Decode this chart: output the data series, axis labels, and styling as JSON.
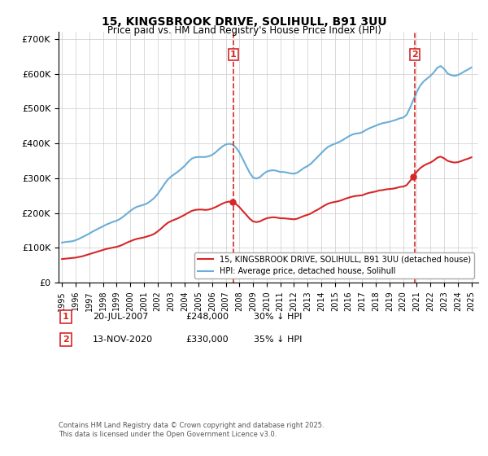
{
  "title": "15, KINGSBROOK DRIVE, SOLIHULL, B91 3UU",
  "subtitle": "Price paid vs. HM Land Registry's House Price Index (HPI)",
  "ylabel": "",
  "ylim": [
    0,
    720000
  ],
  "yticks": [
    0,
    100000,
    200000,
    300000,
    400000,
    500000,
    600000,
    700000
  ],
  "ytick_labels": [
    "£0",
    "£100K",
    "£200K",
    "£300K",
    "£400K",
    "£500K",
    "£600K",
    "£700K"
  ],
  "background_color": "#ffffff",
  "grid_color": "#cccccc",
  "hpi_color": "#6baed6",
  "price_color": "#d62728",
  "vline_color": "#d62728",
  "annotation_box_color": "#d62728",
  "transaction1_year": 2007.55,
  "transaction2_year": 2020.87,
  "transaction1_price": 248000,
  "transaction2_price": 330000,
  "legend_line1": "15, KINGSBROOK DRIVE, SOLIHULL, B91 3UU (detached house)",
  "legend_line2": "HPI: Average price, detached house, Solihull",
  "footnote": "Contains HM Land Registry data © Crown copyright and database right 2025.\nThis data is licensed under the Open Government Licence v3.0.",
  "table_row1": [
    "1",
    "20-JUL-2007",
    "£248,000",
    "30% ↓ HPI"
  ],
  "table_row2": [
    "2",
    "13-NOV-2020",
    "£330,000",
    "35% ↓ HPI"
  ],
  "hpi_x": [
    1995.0,
    1995.25,
    1995.5,
    1995.75,
    1996.0,
    1996.25,
    1996.5,
    1996.75,
    1997.0,
    1997.25,
    1997.5,
    1997.75,
    1998.0,
    1998.25,
    1998.5,
    1998.75,
    1999.0,
    1999.25,
    1999.5,
    1999.75,
    2000.0,
    2000.25,
    2000.5,
    2000.75,
    2001.0,
    2001.25,
    2001.5,
    2001.75,
    2002.0,
    2002.25,
    2002.5,
    2002.75,
    2003.0,
    2003.25,
    2003.5,
    2003.75,
    2004.0,
    2004.25,
    2004.5,
    2004.75,
    2005.0,
    2005.25,
    2005.5,
    2005.75,
    2006.0,
    2006.25,
    2006.5,
    2006.75,
    2007.0,
    2007.25,
    2007.5,
    2007.75,
    2008.0,
    2008.25,
    2008.5,
    2008.75,
    2009.0,
    2009.25,
    2009.5,
    2009.75,
    2010.0,
    2010.25,
    2010.5,
    2010.75,
    2011.0,
    2011.25,
    2011.5,
    2011.75,
    2012.0,
    2012.25,
    2012.5,
    2012.75,
    2013.0,
    2013.25,
    2013.5,
    2013.75,
    2014.0,
    2014.25,
    2014.5,
    2014.75,
    2015.0,
    2015.25,
    2015.5,
    2015.75,
    2016.0,
    2016.25,
    2016.5,
    2016.75,
    2017.0,
    2017.25,
    2017.5,
    2017.75,
    2018.0,
    2018.25,
    2018.5,
    2018.75,
    2019.0,
    2019.25,
    2019.5,
    2019.75,
    2020.0,
    2020.25,
    2020.5,
    2020.75,
    2021.0,
    2021.25,
    2021.5,
    2021.75,
    2022.0,
    2022.25,
    2022.5,
    2022.75,
    2023.0,
    2023.25,
    2023.5,
    2023.75,
    2024.0,
    2024.25,
    2024.5,
    2024.75,
    2025.0
  ],
  "hpi_y": [
    115000,
    117000,
    118000,
    119000,
    122000,
    126000,
    131000,
    136000,
    141000,
    147000,
    152000,
    157000,
    162000,
    167000,
    171000,
    175000,
    178000,
    183000,
    190000,
    198000,
    206000,
    213000,
    218000,
    221000,
    224000,
    228000,
    235000,
    243000,
    254000,
    268000,
    283000,
    296000,
    305000,
    312000,
    319000,
    327000,
    336000,
    347000,
    356000,
    360000,
    361000,
    361000,
    361000,
    363000,
    367000,
    374000,
    383000,
    391000,
    397000,
    399000,
    397000,
    388000,
    374000,
    355000,
    335000,
    316000,
    302000,
    299000,
    303000,
    312000,
    319000,
    322000,
    323000,
    321000,
    318000,
    318000,
    316000,
    314000,
    313000,
    316000,
    323000,
    330000,
    335000,
    342000,
    352000,
    362000,
    372000,
    382000,
    390000,
    395000,
    399000,
    403000,
    408000,
    414000,
    420000,
    425000,
    428000,
    429000,
    432000,
    438000,
    443000,
    447000,
    451000,
    455000,
    458000,
    460000,
    462000,
    465000,
    468000,
    472000,
    474000,
    482000,
    502000,
    525000,
    548000,
    566000,
    578000,
    586000,
    594000,
    604000,
    617000,
    622000,
    614000,
    601000,
    596000,
    594000,
    596000,
    601000,
    607000,
    612000,
    618000
  ],
  "price_x": [
    1995.0,
    1995.25,
    1995.5,
    1995.75,
    1996.0,
    1996.25,
    1996.5,
    1996.75,
    1997.0,
    1997.25,
    1997.5,
    1997.75,
    1998.0,
    1998.25,
    1998.5,
    1998.75,
    1999.0,
    1999.25,
    1999.5,
    1999.75,
    2000.0,
    2000.25,
    2000.5,
    2000.75,
    2001.0,
    2001.25,
    2001.5,
    2001.75,
    2002.0,
    2002.25,
    2002.5,
    2002.75,
    2003.0,
    2003.25,
    2003.5,
    2003.75,
    2004.0,
    2004.25,
    2004.5,
    2004.75,
    2005.0,
    2005.25,
    2005.5,
    2005.75,
    2006.0,
    2006.25,
    2006.5,
    2006.75,
    2007.0,
    2007.25,
    2007.5,
    2007.75,
    2008.0,
    2008.25,
    2008.5,
    2008.75,
    2009.0,
    2009.25,
    2009.5,
    2009.75,
    2010.0,
    2010.25,
    2010.5,
    2010.75,
    2011.0,
    2011.25,
    2011.5,
    2011.75,
    2012.0,
    2012.25,
    2012.5,
    2012.75,
    2013.0,
    2013.25,
    2013.5,
    2013.75,
    2014.0,
    2014.25,
    2014.5,
    2014.75,
    2015.0,
    2015.25,
    2015.5,
    2015.75,
    2016.0,
    2016.25,
    2016.5,
    2016.75,
    2017.0,
    2017.25,
    2017.5,
    2017.75,
    2018.0,
    2018.25,
    2018.5,
    2018.75,
    2019.0,
    2019.25,
    2019.5,
    2019.75,
    2020.0,
    2020.25,
    2020.5,
    2020.75,
    2021.0,
    2021.25,
    2021.5,
    2021.75,
    2022.0,
    2022.25,
    2022.5,
    2022.75,
    2023.0,
    2023.25,
    2023.5,
    2023.75,
    2024.0,
    2024.25,
    2024.5,
    2024.75,
    2025.0
  ],
  "price_y": [
    68000,
    69000,
    70000,
    71000,
    72000,
    74000,
    76000,
    79000,
    82000,
    85000,
    88000,
    91000,
    94000,
    97000,
    99000,
    101000,
    103000,
    106000,
    110000,
    115000,
    119000,
    123000,
    126000,
    128000,
    130000,
    133000,
    136000,
    140000,
    147000,
    155000,
    164000,
    172000,
    177000,
    181000,
    185000,
    190000,
    195000,
    201000,
    206000,
    209000,
    210000,
    210000,
    209000,
    210000,
    213000,
    217000,
    222000,
    227000,
    231000,
    233000,
    231000,
    226000,
    217000,
    206000,
    195000,
    184000,
    176000,
    174000,
    176000,
    181000,
    185000,
    187000,
    188000,
    187000,
    185000,
    185000,
    184000,
    183000,
    182000,
    184000,
    188000,
    192000,
    195000,
    199000,
    205000,
    210000,
    216000,
    222000,
    227000,
    230000,
    232000,
    234000,
    237000,
    241000,
    244000,
    247000,
    249000,
    250000,
    251000,
    255000,
    258000,
    260000,
    262000,
    265000,
    266000,
    268000,
    269000,
    270000,
    272000,
    275000,
    276000,
    280000,
    292000,
    305000,
    319000,
    329000,
    336000,
    341000,
    345000,
    351000,
    359000,
    362000,
    357000,
    350000,
    347000,
    345000,
    346000,
    349000,
    353000,
    356000,
    360000
  ]
}
